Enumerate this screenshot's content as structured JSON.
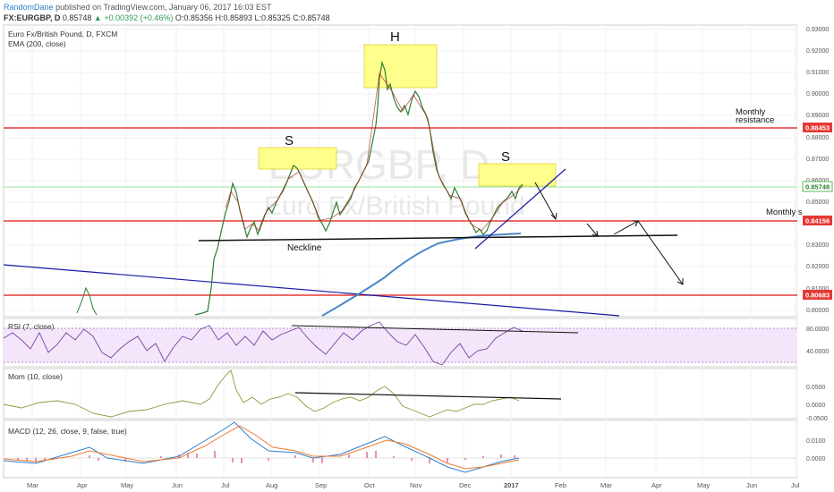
{
  "header": {
    "author": "RandomDane",
    "published": "published on TradingView.com, January 06, 2017 16:03 EST",
    "symbol_line_prefix": "FX:EURGBP, D",
    "last": "0.85748",
    "change": "▲ +0.00392 (+0.46%)",
    "open": "O:0.85356",
    "high": "H:0.85893",
    "low": "L:0.85325",
    "close": "C:0.85748"
  },
  "main_pane": {
    "title": "Euro Fx/British Pound, D, FXCM",
    "indicator": "EMA (200, close)",
    "watermark_symbol": "EURGBP, D",
    "watermark_name": "Euro Fx/British Pound",
    "annotations": {
      "head": "H",
      "left_shoulder": "S",
      "right_shoulder": "S",
      "neckline": "Neckline",
      "monthly_resistance_1": "Monthly",
      "monthly_resistance_2": "resistance",
      "monthly_support": "Monthly s"
    },
    "price_ticks": [
      "0.93000",
      "0.92000",
      "0.91000",
      "0.90000",
      "0.89000",
      "0.88000",
      "0.87000",
      "0.86000",
      "0.85000",
      "0.84000",
      "0.83000",
      "0.82000",
      "0.81000",
      "0.80000"
    ],
    "price_labels": {
      "resistance": "0.88453",
      "current": "0.85748",
      "support": "0.84156",
      "lower": "0.80683"
    }
  },
  "rsi_pane": {
    "title": "RSI (7, close)",
    "ticks": [
      "80.0000",
      "40.0000"
    ]
  },
  "mom_pane": {
    "title": "Mom (10, close)",
    "ticks": [
      "0.0500",
      "0.0000",
      "-0.0500"
    ]
  },
  "macd_pane": {
    "title": "MACD (12, 26, close, 9, false, true)",
    "ticks": [
      "0.0100",
      "0.0000"
    ]
  },
  "time_axis": [
    "Mar",
    "Apr",
    "May",
    "Jun",
    "Jul",
    "Aug",
    "Sep",
    "Oct",
    "Nov",
    "Dec",
    "2017",
    "Feb",
    "Mar",
    "Apr",
    "May",
    "Jun",
    "Jul"
  ],
  "colors": {
    "up_candle": "#2e7d32",
    "down_candle": "#b71c1c",
    "resistance_line": "#e53935",
    "ema": "#4a86c8",
    "trendline": "#1a1aa8",
    "rsi": "#7b3fa0",
    "mom": "#8a9a3a",
    "highlight_box": "#ffff8c",
    "price_label": "#e53935"
  }
}
